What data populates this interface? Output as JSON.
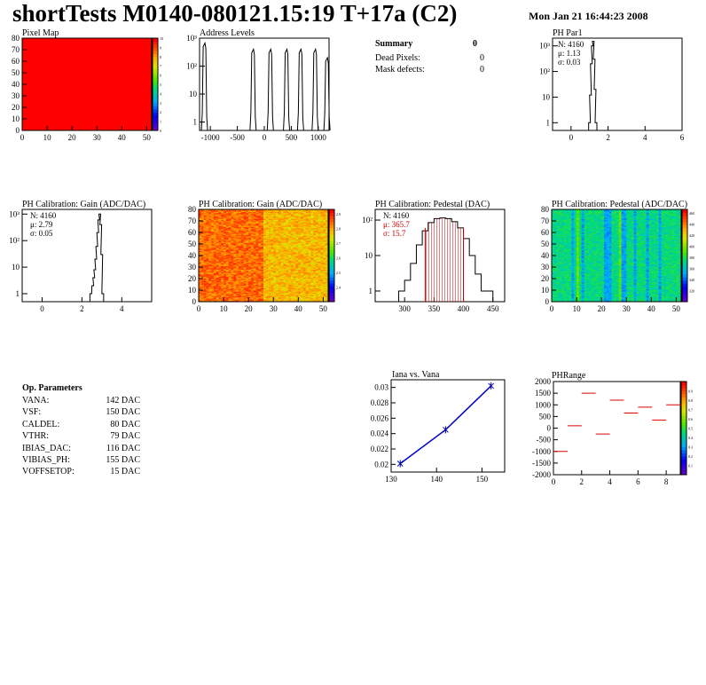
{
  "header": {
    "title": "shortTests M0140-080121.15:19 T+17a (C2)",
    "date": "Mon Jan 21 16:44:23 2008"
  },
  "summary": {
    "heading": "Summary",
    "heading_value": "0",
    "rows": [
      {
        "label": "Dead Pixels:",
        "value": "0"
      },
      {
        "label": "Mask defects:",
        "value": "0"
      }
    ]
  },
  "op_params": {
    "heading": "Op. Parameters",
    "rows": [
      {
        "name": "VANA:",
        "value": "142 DAC"
      },
      {
        "name": "VSF:",
        "value": "150 DAC"
      },
      {
        "name": "CALDEL:",
        "value": "80 DAC"
      },
      {
        "name": "VTHR:",
        "value": "79 DAC"
      },
      {
        "name": "IBIAS_DAC:",
        "value": "116 DAC"
      },
      {
        "name": "VIBIAS_PH:",
        "value": "155 DAC"
      },
      {
        "name": "VOFFSETOP:",
        "value": "15 DAC"
      }
    ]
  },
  "chart_data": [
    {
      "id": "pixel-map",
      "type": "heatmap",
      "title": "Pixel Map",
      "xlim": [
        0,
        52
      ],
      "ylim": [
        0,
        80
      ],
      "xticks": [
        "0",
        "10",
        "20",
        "30",
        "40",
        "50"
      ],
      "yticks": [
        "0",
        "10",
        "20",
        "30",
        "40",
        "50",
        "60",
        "70",
        "80"
      ],
      "fill_value": 10,
      "zlim": [
        0,
        10
      ],
      "zticks": [
        "0",
        "1",
        "2",
        "3",
        "4",
        "5",
        "6",
        "7",
        "8",
        "9",
        "10"
      ]
    },
    {
      "id": "address-levels",
      "type": "line",
      "title": "Address Levels",
      "log_y": true,
      "xlim": [
        -1200,
        1200
      ],
      "ylim": [
        0.5,
        1000
      ],
      "xticks": [
        "-1000",
        "-500",
        "0",
        "500",
        "1000"
      ],
      "peaks": [
        {
          "x": -1100,
          "height": 500
        },
        {
          "x": -200,
          "height": 300
        },
        {
          "x": 120,
          "height": 300
        },
        {
          "x": 420,
          "height": 300
        },
        {
          "x": 680,
          "height": 300
        },
        {
          "x": 950,
          "height": 300
        },
        {
          "x": 1170,
          "height": 150
        }
      ]
    },
    {
      "id": "ph-par1",
      "type": "line",
      "title": "PH Par1",
      "log_y": true,
      "xlim": [
        -1,
        6
      ],
      "ylim": [
        0.5,
        2000
      ],
      "xticks": [
        "0",
        "2",
        "4",
        "6"
      ],
      "stats": [
        {
          "label": "N:",
          "value": "4160"
        },
        {
          "label": "μ:",
          "value": "1.13"
        },
        {
          "label": "σ:",
          "value": "0.03"
        }
      ],
      "hist": {
        "x": [
          0.95,
          1.0,
          1.05,
          1.1,
          1.15,
          1.2,
          1.25,
          1.3
        ],
        "y": [
          1,
          12,
          200,
          1000,
          1500,
          300,
          20,
          1
        ]
      }
    },
    {
      "id": "gain-1d",
      "type": "line",
      "title": "PH Calibration: Gain (ADC/DAC)",
      "log_y": true,
      "xlim": [
        -1,
        5.5
      ],
      "ylim": [
        0.5,
        1500
      ],
      "xticks": [
        "0",
        "2",
        "4"
      ],
      "stats": [
        {
          "label": "N:",
          "value": "4160"
        },
        {
          "label": "μ:",
          "value": "2.79"
        },
        {
          "label": "σ:",
          "value": "0.05"
        }
      ],
      "hist": {
        "x": [
          2.4,
          2.5,
          2.55,
          2.6,
          2.65,
          2.7,
          2.75,
          2.8,
          2.85,
          2.9,
          2.95,
          3.0
        ],
        "y": [
          1,
          2,
          4,
          8,
          20,
          60,
          200,
          600,
          1000,
          400,
          30,
          1
        ]
      }
    },
    {
      "id": "gain-map",
      "type": "heatmap",
      "title": "PH Calibration: Gain (ADC/DAC)",
      "xlim": [
        0,
        52
      ],
      "ylim": [
        0,
        80
      ],
      "xticks": [
        "0",
        "10",
        "20",
        "30",
        "40",
        "50"
      ],
      "yticks": [
        "0",
        "10",
        "20",
        "30",
        "40",
        "50",
        "60",
        "70",
        "80"
      ],
      "zlim": [
        2.35,
        2.9
      ],
      "zticks": [
        "2.4",
        "2.5",
        "2.6",
        "2.7",
        "2.8",
        "2.9"
      ]
    },
    {
      "id": "pedestal-1d",
      "type": "line",
      "title": "PH Calibration: Pedestal (DAC)",
      "log_y": true,
      "xlim": [
        250,
        470
      ],
      "ylim": [
        0.5,
        200
      ],
      "xticks": [
        "300",
        "350",
        "400",
        "450"
      ],
      "stats": [
        {
          "label": "N:",
          "value": "4160"
        },
        {
          "label": "μ:",
          "value": "365.7"
        },
        {
          "label": "σ:",
          "value": "15.7"
        }
      ],
      "hist": {
        "x": [
          290,
          300,
          310,
          320,
          330,
          340,
          350,
          360,
          370,
          380,
          390,
          400,
          410,
          420,
          430,
          440
        ],
        "y": [
          1,
          2,
          6,
          20,
          50,
          85,
          110,
          115,
          110,
          90,
          60,
          30,
          10,
          3,
          1,
          1
        ]
      },
      "markers": [
        335,
        400
      ]
    },
    {
      "id": "pedestal-map",
      "type": "heatmap",
      "title": "PH Calibration: Pedestal (ADC/DAC)",
      "xlim": [
        0,
        52
      ],
      "ylim": [
        0,
        80
      ],
      "xticks": [
        "0",
        "10",
        "20",
        "30",
        "40",
        "50"
      ],
      "yticks": [
        "0",
        "10",
        "20",
        "30",
        "40",
        "50",
        "60",
        "70",
        "80"
      ],
      "zlim": [
        300,
        460
      ],
      "zticks": [
        "320",
        "340",
        "360",
        "380",
        "400",
        "420",
        "440",
        "460"
      ]
    },
    {
      "id": "iana-vana",
      "type": "line",
      "title": "Iana vs. Vana",
      "xlim": [
        130,
        155
      ],
      "ylim": [
        0.019,
        0.031
      ],
      "xticks": [
        "130",
        "140",
        "150"
      ],
      "yticks": [
        "0.02",
        "0.022",
        "0.024",
        "0.026",
        "0.028",
        "0.03"
      ],
      "x": [
        132,
        142,
        152
      ],
      "y": [
        0.0201,
        0.0245,
        0.0302
      ]
    },
    {
      "id": "ph-range",
      "type": "scatter",
      "title": "PHRange",
      "xlim": [
        0,
        9
      ],
      "ylim": [
        -2000,
        2000
      ],
      "xticks": [
        "0",
        "2",
        "4",
        "6",
        "8"
      ],
      "yticks": [
        "-2000",
        "-1500",
        "-1000",
        "-500",
        "0",
        "500",
        "1000",
        "1500",
        "2000"
      ],
      "zticks": [
        "0.1",
        "0.2",
        "0.3",
        "0.4",
        "0.5",
        "0.6",
        "0.7",
        "0.8",
        "0.9"
      ],
      "x": [
        0.5,
        1.5,
        2.5,
        3.5,
        4.5,
        5.5,
        6.5,
        7.5,
        8.5
      ],
      "y": [
        -1000,
        100,
        1500,
        -250,
        1200,
        650,
        900,
        350,
        1000
      ]
    }
  ]
}
